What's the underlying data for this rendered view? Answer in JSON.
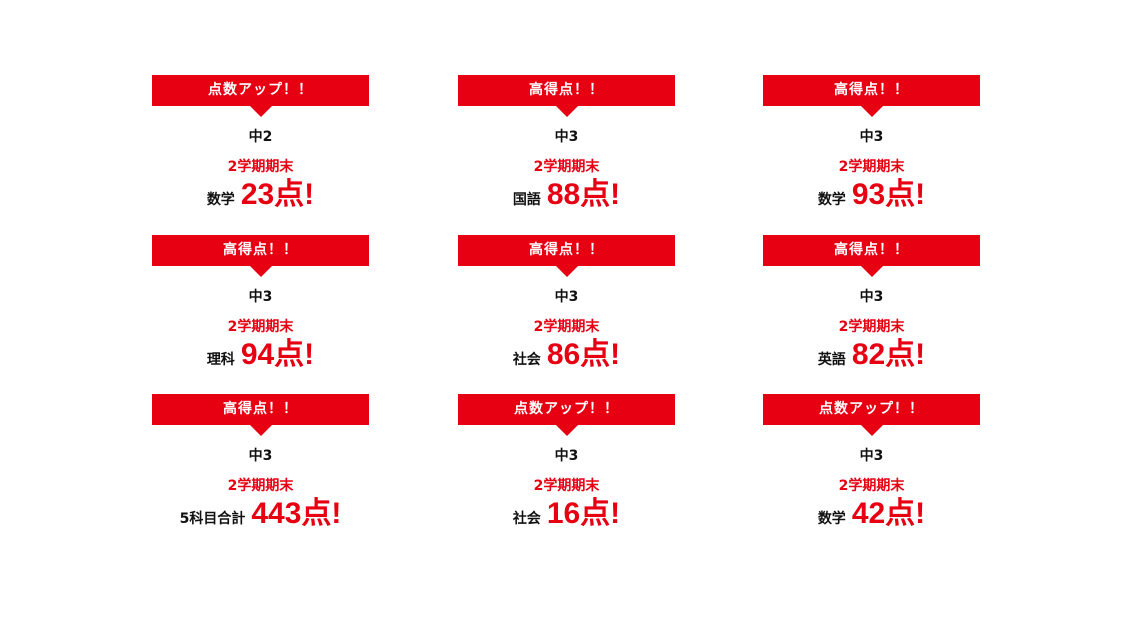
{
  "accent_color": "#e60012",
  "cards": [
    {
      "badge": "点数アップ！！",
      "grade": "中2",
      "term": "2学期期末",
      "subject": "数学",
      "score": "23点!"
    },
    {
      "badge": "高得点！！",
      "grade": "中3",
      "term": "2学期期末",
      "subject": "国語",
      "score": "88点!"
    },
    {
      "badge": "高得点！！",
      "grade": "中3",
      "term": "2学期期末",
      "subject": "数学",
      "score": "93点!"
    },
    {
      "badge": "高得点！！",
      "grade": "中3",
      "term": "2学期期末",
      "subject": "理科",
      "score": "94点!"
    },
    {
      "badge": "高得点！！",
      "grade": "中3",
      "term": "2学期期末",
      "subject": "社会",
      "score": "86点!"
    },
    {
      "badge": "高得点！！",
      "grade": "中3",
      "term": "2学期期末",
      "subject": "英語",
      "score": "82点!"
    },
    {
      "badge": "高得点！！",
      "grade": "中3",
      "term": "2学期期末",
      "subject": "5科目合計",
      "score": "443点!"
    },
    {
      "badge": "点数アップ！！",
      "grade": "中3",
      "term": "2学期期末",
      "subject": "社会",
      "score": "16点!"
    },
    {
      "badge": "点数アップ！！",
      "grade": "中3",
      "term": "2学期期末",
      "subject": "数学",
      "score": "42点!"
    }
  ]
}
